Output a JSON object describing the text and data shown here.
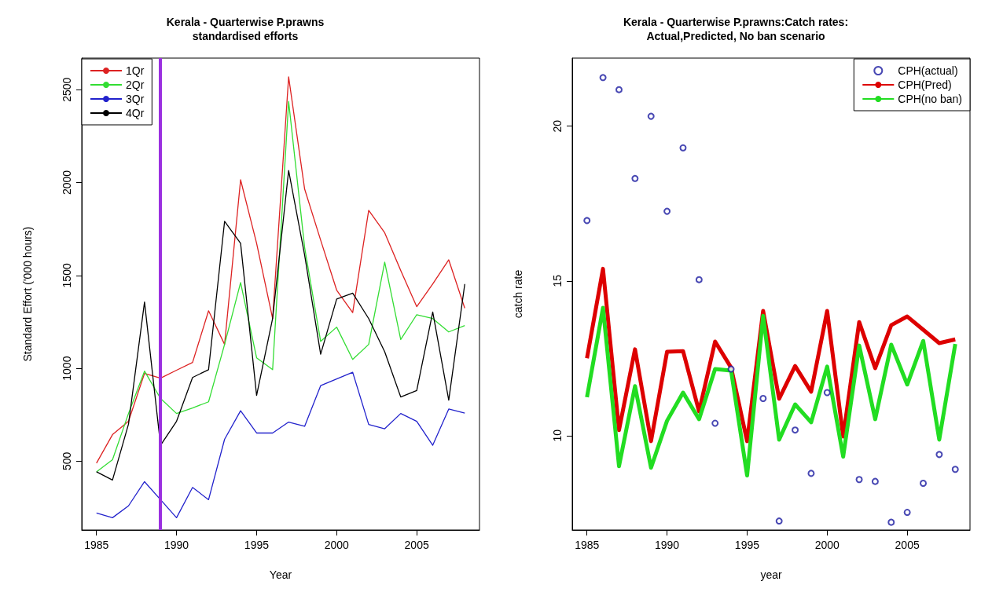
{
  "chart_data": [
    {
      "type": "line",
      "title": "Kerala - Quarterwise P.prawns\nstandardised efforts",
      "xlabel": "Year",
      "ylabel": "Standard Effort ('000 hours)",
      "x": [
        1985,
        1986,
        1987,
        1988,
        1989,
        1990,
        1991,
        1992,
        1993,
        1994,
        1995,
        1996,
        1997,
        1998,
        1999,
        2000,
        2001,
        2002,
        2003,
        2004,
        2005,
        2006,
        2007,
        2008
      ],
      "series": [
        {
          "name": "1Qr",
          "color": "#dd2222",
          "values": [
            490,
            643,
            715,
            973,
            947,
            990,
            1032,
            1310,
            1129,
            2015,
            1673,
            1268,
            2569,
            1965,
            1690,
            1421,
            1300,
            1851,
            1730,
            1527,
            1332,
            1454,
            1584,
            1324
          ]
        },
        {
          "name": "2Qr",
          "color": "#33dd33",
          "values": [
            443,
            508,
            757,
            985,
            838,
            757,
            787,
            820,
            1129,
            1462,
            1057,
            993,
            2437,
            1650,
            1145,
            1222,
            1048,
            1129,
            1572,
            1155,
            1289,
            1268,
            1196,
            1230
          ]
        },
        {
          "name": "3Qr",
          "color": "#2222cc",
          "values": [
            221,
            196,
            260,
            390,
            293,
            196,
            359,
            293,
            618,
            772,
            652,
            652,
            711,
            688,
            907,
            943,
            979,
            698,
            675,
            757,
            715,
            586,
            781,
            759
          ]
        },
        {
          "name": "4Qr",
          "color": "#000000",
          "values": [
            443,
            399,
            700,
            1357,
            586,
            715,
            951,
            993,
            1791,
            1673,
            854,
            1268,
            2065,
            1610,
            1076,
            1373,
            1405,
            1268,
            1089,
            846,
            881,
            1303,
            829,
            1454
          ]
        }
      ],
      "xlim": [
        1984.08,
        2008.92
      ],
      "ylim": [
        130,
        2670
      ],
      "xticks": [
        1985,
        1990,
        1995,
        2000,
        2005
      ],
      "yticks": [
        500,
        1000,
        1500,
        2000,
        2500
      ],
      "ref_lines": [
        {
          "axis": "x",
          "value": 1989,
          "color": "#9b30e0"
        }
      ],
      "legend": "top left"
    },
    {
      "type": "line",
      "title": "Kerala - Quarterwise P.prawns:Catch rates:\nActual,Predicted, No ban scenario",
      "xlabel": "year",
      "ylabel": "catch rate",
      "x": [
        1985,
        1986,
        1987,
        1988,
        1989,
        1990,
        1991,
        1992,
        1993,
        1994,
        1995,
        1996,
        1997,
        1998,
        1999,
        2000,
        2001,
        2002,
        2003,
        2004,
        2005,
        2006,
        2007,
        2008
      ],
      "series": [
        {
          "name": "CPH(actual)",
          "type": "scatter",
          "marker": "circle",
          "color": "#1a1aa0",
          "values": [
            16.95,
            21.57,
            21.18,
            18.31,
            20.32,
            17.25,
            19.3,
            15.04,
            10.4,
            12.15,
            null,
            11.2,
            7.24,
            10.18,
            8.78,
            11.39,
            null,
            8.58,
            8.52,
            7.2,
            7.52,
            8.46,
            9.39,
            8.91
          ]
        },
        {
          "name": "CPH(Pred)",
          "color": "#dd0000",
          "values": [
            12.5,
            15.39,
            10.18,
            12.79,
            9.82,
            12.71,
            12.73,
            10.78,
            13.04,
            12.2,
            9.82,
            14.03,
            11.19,
            12.25,
            11.42,
            14.03,
            9.97,
            13.67,
            12.18,
            13.57,
            13.85,
            13.42,
            12.99,
            13.11
          ]
        },
        {
          "name": "CPH(no ban)",
          "color": "#22dd22",
          "values": [
            11.24,
            14.13,
            9.01,
            11.6,
            8.96,
            10.48,
            11.39,
            10.53,
            12.15,
            12.1,
            8.71,
            13.87,
            9.87,
            11.01,
            10.43,
            12.23,
            9.32,
            12.91,
            10.53,
            12.94,
            11.65,
            13.06,
            9.87,
            12.96
          ]
        }
      ],
      "xlim": [
        1984.08,
        2008.92
      ],
      "ylim": [
        6.95,
        22.2
      ],
      "xticks": [
        1985,
        1990,
        1995,
        2000,
        2005
      ],
      "yticks": [
        10,
        15,
        20
      ],
      "legend": "top right"
    }
  ]
}
